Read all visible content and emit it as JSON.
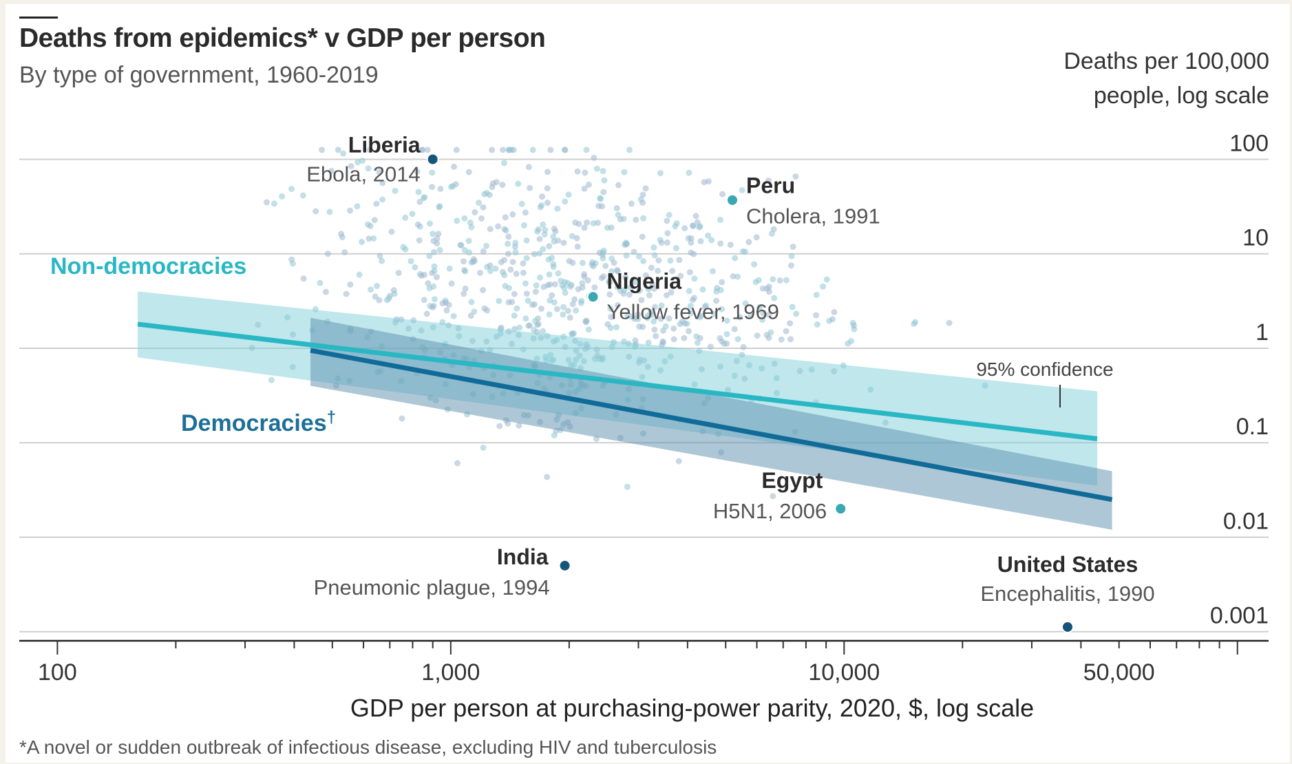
{
  "chart_data": {
    "type": "scatter",
    "title": "Deaths from epidemics* v GDP per person",
    "subtitle": "By type of government, 1960-2019",
    "ylabel_line1": "Deaths per 100,000",
    "ylabel_line2": "people, log scale",
    "xlabel": "GDP per person at purchasing-power parity, 2020, $, log scale",
    "footnote": "*A novel or sudden outbreak of infectious disease, excluding HIV and tuberculosis",
    "x_scale": "log",
    "y_scale": "log",
    "xlim": [
      80,
      120000
    ],
    "ylim": [
      0.0008,
      300
    ],
    "x_ticks": [
      {
        "value": 100,
        "label": "100"
      },
      {
        "value": 1000,
        "label": "1,000"
      },
      {
        "value": 10000,
        "label": "10,000"
      },
      {
        "value": 50000,
        "label": "50,000"
      }
    ],
    "y_ticks": [
      {
        "value": 100,
        "label": "100"
      },
      {
        "value": 10,
        "label": "10"
      },
      {
        "value": 1,
        "label": "1"
      },
      {
        "value": 0.1,
        "label": "0.1"
      },
      {
        "value": 0.01,
        "label": "0.01"
      },
      {
        "value": 0.001,
        "label": "0.001"
      }
    ],
    "grid": true,
    "confidence_label": "95% confidence",
    "series": [
      {
        "name": "Non-democracies",
        "color": "#2ab7c4",
        "band_color": "#7fd0d9",
        "line": [
          [
            160,
            1.8
          ],
          [
            44000,
            0.11
          ]
        ],
        "band_upper": [
          [
            160,
            4.0
          ],
          [
            44000,
            0.35
          ]
        ],
        "band_lower": [
          [
            160,
            0.8
          ],
          [
            44000,
            0.035
          ]
        ]
      },
      {
        "name": "Democracies",
        "name_suffix": "†",
        "color": "#106b99",
        "band_color": "#5e8fae",
        "line": [
          [
            440,
            0.95
          ],
          [
            48000,
            0.025
          ]
        ],
        "band_upper": [
          [
            440,
            2.1
          ],
          [
            48000,
            0.05
          ]
        ],
        "band_lower": [
          [
            440,
            0.4
          ],
          [
            48000,
            0.012
          ]
        ]
      }
    ],
    "highlighted_points": [
      {
        "name": "Liberia",
        "event": "Ebola, 2014",
        "x": 900,
        "y": 100,
        "color": "#16557a"
      },
      {
        "name": "Peru",
        "event": "Cholera, 1991",
        "x": 5200,
        "y": 37,
        "color": "#3aa8b2"
      },
      {
        "name": "Nigeria",
        "event": "Yellow fever, 1969",
        "x": 2300,
        "y": 3.5,
        "color": "#3aa8b2"
      },
      {
        "name": "Egypt",
        "event": "H5N1, 2006",
        "x": 9800,
        "y": 0.02,
        "color": "#3aa8b2"
      },
      {
        "name": "India",
        "event": "Pneumonic plague, 1994",
        "x": 1950,
        "y": 0.005,
        "color": "#16557a"
      },
      {
        "name": "United States",
        "event": "Encephalitis, 1990",
        "x": 37000,
        "y": 0.00112,
        "color": "#16557a"
      }
    ]
  }
}
